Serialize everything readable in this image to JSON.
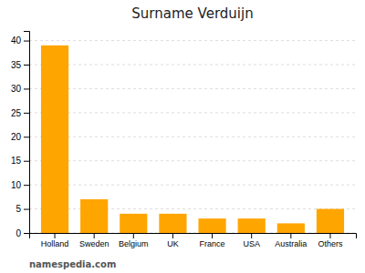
{
  "chart_data": {
    "type": "bar",
    "title": "Surname Verduijn",
    "categories": [
      "Holland",
      "Sweden",
      "Belgium",
      "UK",
      "France",
      "USA",
      "Australia",
      "Others"
    ],
    "values": [
      39,
      7,
      4,
      4,
      3,
      3,
      2,
      5
    ],
    "color": "#FFA500",
    "ylim": [
      0,
      42
    ],
    "yticks": [
      0,
      5,
      10,
      15,
      20,
      25,
      30,
      35,
      40
    ],
    "grid": true,
    "annotation": "namespedia.com"
  }
}
